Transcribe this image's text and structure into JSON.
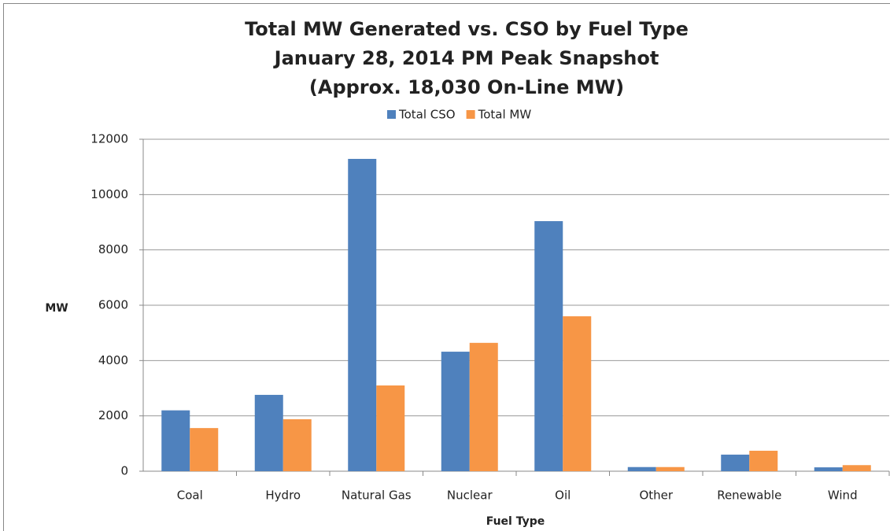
{
  "chart_data": {
    "type": "bar",
    "title": [
      "Total MW Generated vs. CSO by Fuel Type",
      "January 28, 2014 PM Peak Snapshot",
      "(Approx. 18,030 On-Line MW)"
    ],
    "y_label": "MW",
    "x_label": "Fuel Type",
    "categories": [
      "Coal",
      "Hydro",
      "Natural Gas",
      "Nuclear",
      "Oil",
      "Other",
      "Renewable",
      "Wind"
    ],
    "series": [
      {
        "name": "Total CSO",
        "color": "#4f81bd",
        "values": [
          2200,
          2760,
          11290,
          4320,
          9040,
          150,
          600,
          140
        ]
      },
      {
        "name": "Total MW",
        "color": "#f79646",
        "values": [
          1560,
          1880,
          3100,
          4640,
          5600,
          150,
          740,
          220
        ]
      }
    ],
    "ylim": [
      0,
      12000
    ],
    "yticks": [
      0,
      2000,
      4000,
      6000,
      8000,
      10000,
      12000
    ],
    "grid": true
  }
}
